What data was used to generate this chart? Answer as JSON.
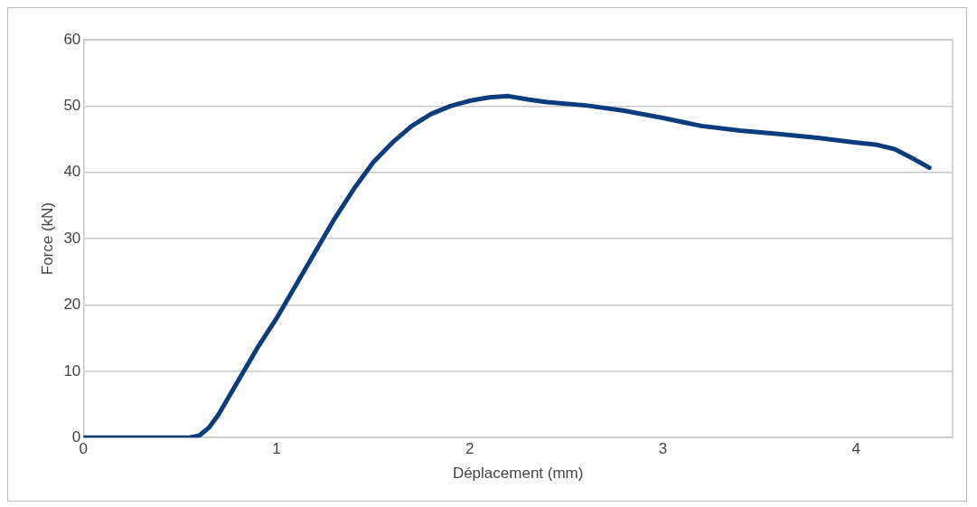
{
  "chart_data": {
    "type": "line",
    "xlabel": "Déplacement (mm)",
    "ylabel": "Force (kN)",
    "x": [
      0,
      0.2,
      0.4,
      0.55,
      0.6,
      0.65,
      0.7,
      0.8,
      0.9,
      1.0,
      1.1,
      1.2,
      1.3,
      1.4,
      1.5,
      1.6,
      1.7,
      1.8,
      1.9,
      2.0,
      2.1,
      2.2,
      2.3,
      2.4,
      2.6,
      2.8,
      3.0,
      3.2,
      3.4,
      3.6,
      3.8,
      4.0,
      4.1,
      4.2,
      4.3,
      4.38
    ],
    "series": [
      {
        "color": "#0b3c7d",
        "values": [
          0,
          0,
          0,
          0,
          0.3,
          1.5,
          3.5,
          8.5,
          13.5,
          18,
          23,
          28,
          33,
          37.5,
          41.5,
          44.5,
          47,
          48.8,
          50,
          50.8,
          51.3,
          51.5,
          51,
          50.6,
          50.1,
          49.3,
          48.2,
          47,
          46.3,
          45.8,
          45.2,
          44.5,
          44.2,
          43.5,
          42,
          40.7
        ]
      }
    ],
    "xlim": [
      0,
      4.5
    ],
    "xticks": [
      0,
      1,
      2,
      3,
      4
    ],
    "ylim": [
      0,
      60
    ],
    "yticks": [
      0,
      10,
      20,
      30,
      40,
      50,
      60
    ],
    "grid": "y",
    "legend": false,
    "marker": "none",
    "line_style": "solid"
  }
}
